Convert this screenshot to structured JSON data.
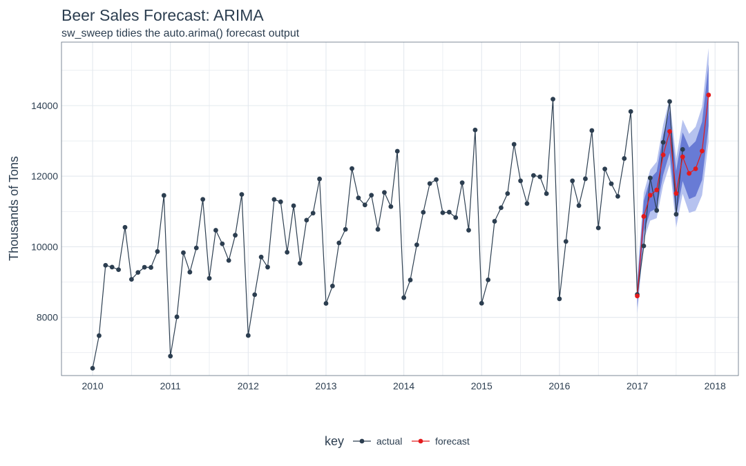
{
  "chart_data": {
    "type": "line",
    "title": "Beer Sales Forecast: ARIMA",
    "subtitle": "sw_sweep tidies the auto.arima() forecast output",
    "xlabel": "",
    "ylabel": "Thousands of Tons",
    "xlim": [
      2009.6,
      2018.3
    ],
    "ylim": [
      6350,
      15800
    ],
    "x_ticks": [
      2010,
      2011,
      2012,
      2013,
      2014,
      2015,
      2016,
      2017,
      2018
    ],
    "y_ticks": [
      8000,
      10000,
      12000,
      14000
    ],
    "legend": {
      "title": "key",
      "position": "bottom",
      "entries": [
        {
          "label": "actual",
          "color": "#2c3e50"
        },
        {
          "label": "forecast",
          "color": "#e31a1c"
        }
      ]
    },
    "colors": {
      "actual": "#2c3e50",
      "forecast": "#e31a1c",
      "band95": "#a9b7ec",
      "band80": "#5b6fd0",
      "grid": "#e3e8ee",
      "panel_border": "#5d6d7e"
    },
    "series": [
      {
        "name": "actual",
        "start_year": 2010,
        "freq": 12,
        "values": [
          6558,
          7481,
          9475,
          9424,
          9351,
          10552,
          9077,
          9273,
          9420,
          9413,
          9866,
          11455,
          6901,
          8014,
          9833,
          9281,
          9967,
          11344,
          9106,
          10468,
          10085,
          9612,
          10328,
          11483,
          7486,
          8641,
          9709,
          9423,
          11342,
          11274,
          9845,
          11163,
          9532,
          10754,
          10953,
          11922,
          8395,
          8888,
          10109,
          10493,
          12217,
          11385,
          11186,
          11462,
          10494,
          11540,
          11138,
          12709,
          8557,
          9059,
          10055,
          10977,
          11792,
          11904,
          10965,
          10981,
          10828,
          11815,
          10470,
          13310,
          8400,
          9062,
          10722,
          11107,
          11508,
          12904,
          11869,
          11224,
          12022,
          11983,
          11506,
          14183,
          8524,
          10151,
          11869,
          11167,
          11927,
          13295,
          10534,
          12205,
          11786,
          11429,
          12502,
          13834,
          8648,
          10023,
          11950,
          11030,
          12961,
          14116,
          10921,
          12760
        ]
      },
      {
        "name": "forecast",
        "start_year": 2017,
        "freq": 12,
        "values": [
          8605,
          10861,
          11460,
          11610,
          12603,
          13269,
          11512,
          12549,
          12080,
          12210,
          12713,
          14302
        ],
        "lo80": [
          8280,
          10420,
          10990,
          11090,
          12040,
          12660,
          10870,
          11860,
          11350,
          11430,
          11890,
          13430
        ],
        "hi80": [
          8930,
          11300,
          11930,
          12130,
          13170,
          13880,
          12150,
          13240,
          12810,
          12990,
          13540,
          15170
        ],
        "lo95": [
          8110,
          10190,
          10740,
          10810,
          11750,
          12330,
          10540,
          11500,
          10960,
          11020,
          11460,
          12970
        ],
        "hi95": [
          9100,
          11530,
          12180,
          12410,
          13460,
          14200,
          12490,
          13600,
          13200,
          13400,
          13970,
          15630
        ]
      }
    ]
  }
}
